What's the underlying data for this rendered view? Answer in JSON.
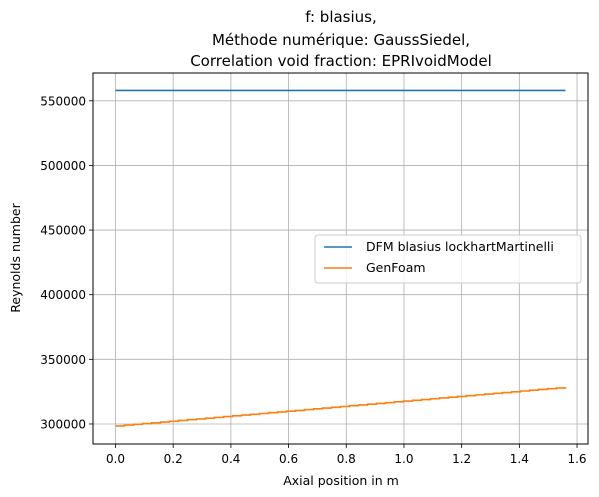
{
  "chart_data": {
    "type": "line",
    "title_lines": [
      "f: blasius,",
      "Méthode numérique: GaussSiedel,",
      "Correlation void fraction: EPRIvoidModel"
    ],
    "xlabel": "Axial position in m",
    "ylabel": "Reynolds number",
    "xlim": [
      -0.078,
      1.638
    ],
    "ylim": [
      284500,
      571500
    ],
    "xticks": [
      0.0,
      0.2,
      0.4,
      0.6,
      0.8,
      1.0,
      1.2,
      1.4,
      1.6
    ],
    "xtick_labels": [
      "0.0",
      "0.2",
      "0.4",
      "0.6",
      "0.8",
      "1.0",
      "1.2",
      "1.4",
      "1.6"
    ],
    "yticks": [
      300000,
      350000,
      400000,
      450000,
      500000,
      550000
    ],
    "ytick_labels": [
      "300000",
      "350000",
      "400000",
      "450000",
      "500000",
      "550000"
    ],
    "grid": true,
    "legend_position": "center-right",
    "series": [
      {
        "name": "DFM blasius lockhartMartinelli",
        "color": "#1f77b4",
        "style": "line",
        "x": [
          0.0,
          1.56
        ],
        "y": [
          558000,
          558000
        ]
      },
      {
        "name": "GenFoam",
        "color": "#ff7f0e",
        "style": "step",
        "x_start": 0.0,
        "x_end": 1.56,
        "y_start": 298500,
        "y_end": 328500,
        "steps": 50
      }
    ]
  }
}
